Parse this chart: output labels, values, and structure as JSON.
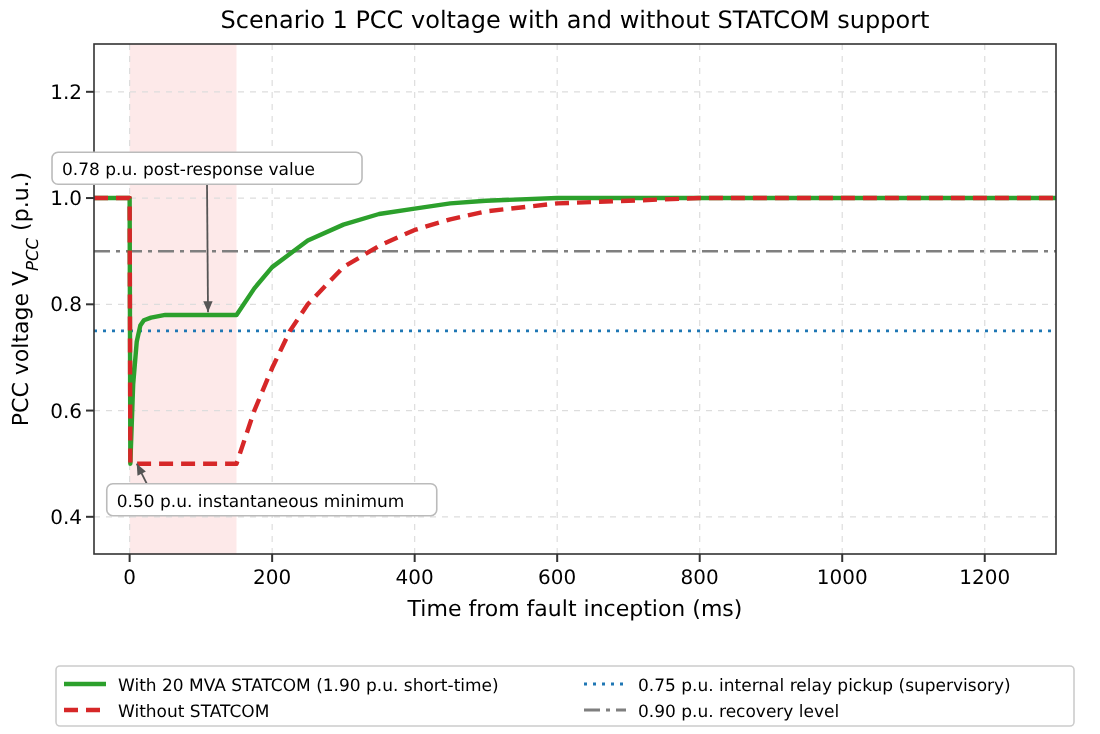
{
  "chart_data": {
    "type": "line",
    "title": "Scenario 1 PCC voltage with and without STATCOM support",
    "xlabel": "Time from fault inception (ms)",
    "ylabel": "PCC voltage V$_{PCC}$ (p.u.)",
    "xlim": [
      -50,
      1300
    ],
    "xticks": [
      0,
      200,
      400,
      600,
      800,
      1000,
      1200
    ],
    "ylim": [
      0.33,
      1.29
    ],
    "yticks": [
      0.4,
      0.6,
      0.8,
      {
        "value": 1,
        "label": "1.0"
      },
      1.2
    ],
    "grid": true,
    "legend": "bottom",
    "series": [
      {
        "name": "With 20 MVA STATCOM (1.90 p.u. short-time)",
        "color": "#2ca02c",
        "line_style": "solid",
        "x": [
          -50,
          0,
          1,
          5,
          10,
          15,
          20,
          30,
          50,
          100,
          150,
          175,
          200,
          250,
          300,
          350,
          400,
          450,
          500,
          600,
          700,
          800,
          1000,
          1300
        ],
        "values": [
          1.0,
          1.0,
          0.5,
          0.65,
          0.73,
          0.76,
          0.77,
          0.775,
          0.78,
          0.78,
          0.78,
          0.83,
          0.87,
          0.92,
          0.95,
          0.97,
          0.98,
          0.99,
          0.995,
          1.0,
          1.0,
          1.0,
          1.0,
          1.0
        ]
      },
      {
        "name": "Without STATCOM",
        "color": "#d62728",
        "line_style": "dashed",
        "x": [
          -50,
          0,
          1,
          150,
          175,
          200,
          225,
          250,
          300,
          350,
          400,
          450,
          500,
          600,
          700,
          800,
          1300
        ],
        "values": [
          1.0,
          1.0,
          0.5,
          0.5,
          0.6,
          0.68,
          0.75,
          0.8,
          0.87,
          0.91,
          0.94,
          0.96,
          0.975,
          0.99,
          0.995,
          1.0,
          1.0
        ]
      }
    ],
    "ref_lines": [
      {
        "axis": "y",
        "value": 0.75,
        "label": "0.75 p.u. internal relay pickup (supervisory)",
        "color": "#1f77b4",
        "line_style": "dotted"
      },
      {
        "axis": "y",
        "value": 0.9,
        "label": "0.90 p.u. recovery level",
        "color": "#7f7f7f",
        "line_style": "dashdot"
      }
    ],
    "bands": [
      {
        "axis": "x",
        "from": 0,
        "to": 150,
        "color": "#fde3e3"
      }
    ],
    "annotations": [
      {
        "text": "0.78 p.u. post-response value",
        "x": 110,
        "y": 0.785
      },
      {
        "text": "0.50 p.u. instantaneous minimum",
        "x": 10,
        "y": 0.5
      }
    ]
  }
}
